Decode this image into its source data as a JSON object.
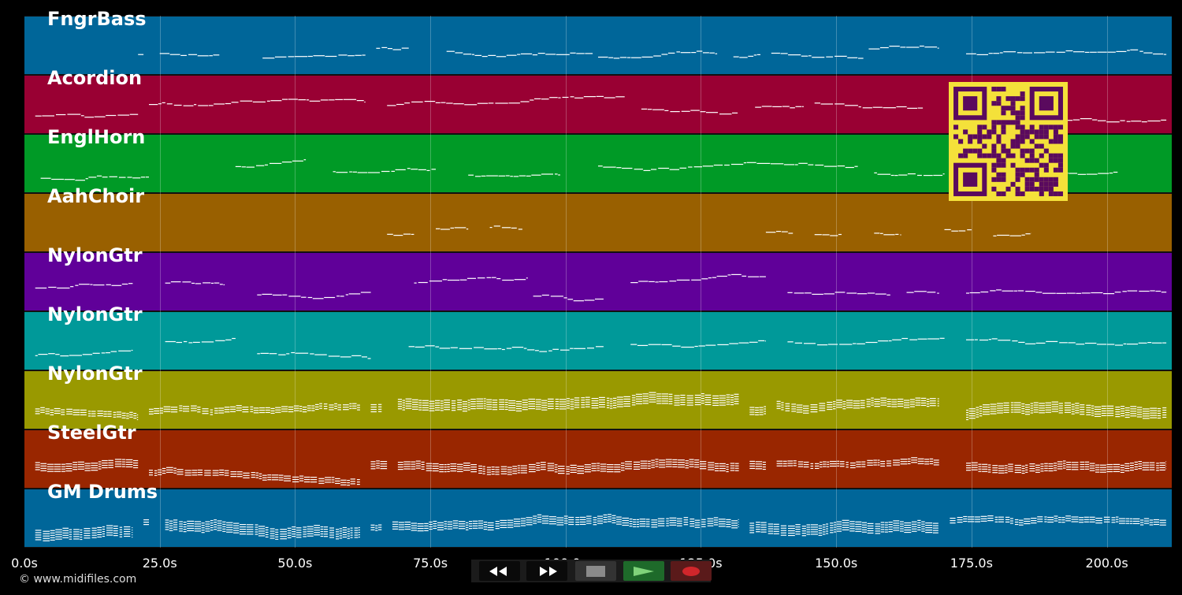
{
  "tracks": [
    {
      "label": "FngrBass",
      "color": "#006699"
    },
    {
      "label": "Acordion",
      "color": "#990033"
    },
    {
      "label": "EnglHorn",
      "color": "#009a26"
    },
    {
      "label": "AahChoir",
      "color": "#996000"
    },
    {
      "label": "NylonGtr",
      "color": "#600099"
    },
    {
      "label": "NylonGtr",
      "color": "#009999"
    },
    {
      "label": "NylonGtr",
      "color": "#999900"
    },
    {
      "label": "SteelGtr",
      "color": "#992600"
    },
    {
      "label": "GM Drums",
      "color": "#006699"
    }
  ],
  "x_axis": {
    "ticks": [
      "0.0s",
      "25.0s",
      "50.0s",
      "75.0s",
      "100.0s",
      "125.0s",
      "150.0s",
      "175.0s",
      "200.0s"
    ],
    "tick_values": [
      0,
      25,
      50,
      75,
      100,
      125,
      150,
      175,
      200
    ],
    "max_seconds": 212
  },
  "copyright": "© www.midifiles.com",
  "controls": [
    {
      "name": "rewind",
      "icon": "rewind-icon"
    },
    {
      "name": "fast-forward",
      "icon": "fast-forward-icon"
    },
    {
      "name": "stop",
      "icon": "stop-icon"
    },
    {
      "name": "play",
      "icon": "play-icon"
    },
    {
      "name": "record",
      "icon": "record-icon"
    }
  ],
  "qr_colors": {
    "bg": "#f4e13a",
    "fg": "#5a0a5e"
  }
}
